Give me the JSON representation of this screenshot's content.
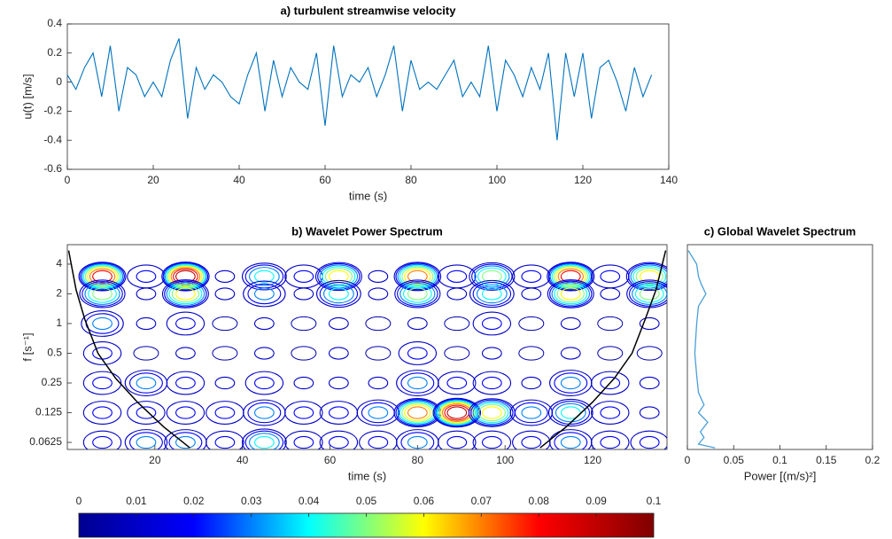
{
  "chart_data": [
    {
      "type": "line",
      "title": "a) turbulent streamwise velocity",
      "x_label": "time (s)",
      "y_label": "u(t) [m/s]",
      "x": [
        0,
        2,
        4,
        6,
        8,
        10,
        12,
        14,
        16,
        18,
        20,
        22,
        24,
        26,
        28,
        30,
        32,
        34,
        36,
        38,
        40,
        42,
        44,
        46,
        48,
        50,
        52,
        54,
        56,
        58,
        60,
        62,
        64,
        66,
        68,
        70,
        72,
        74,
        76,
        78,
        80,
        82,
        84,
        86,
        88,
        90,
        92,
        94,
        96,
        98,
        100,
        102,
        104,
        106,
        108,
        110,
        112,
        114,
        116,
        118,
        120,
        122,
        124,
        126,
        128,
        130,
        132,
        134,
        136
      ],
      "series": [
        {
          "color": "#0072bd",
          "values": [
            0.05,
            -0.05,
            0.1,
            0.2,
            -0.1,
            0.25,
            -0.2,
            0.1,
            0.05,
            -0.1,
            0.0,
            -0.1,
            0.15,
            0.3,
            -0.25,
            0.1,
            -0.05,
            0.05,
            0.0,
            -0.1,
            -0.15,
            0.05,
            0.2,
            -0.2,
            0.15,
            -0.1,
            0.1,
            0.0,
            -0.05,
            0.2,
            -0.3,
            0.25,
            -0.1,
            0.05,
            0.0,
            0.1,
            -0.1,
            0.05,
            0.25,
            -0.2,
            0.15,
            -0.05,
            0.0,
            -0.05,
            0.05,
            0.15,
            -0.1,
            0.0,
            -0.1,
            0.25,
            -0.2,
            0.15,
            0.05,
            -0.1,
            0.1,
            -0.05,
            0.2,
            -0.4,
            0.2,
            -0.1,
            0.2,
            -0.25,
            0.1,
            0.15,
            0.0,
            -0.2,
            0.1,
            -0.1,
            0.05
          ]
        }
      ],
      "xlim": [
        0,
        140
      ],
      "xticks": [
        0,
        20,
        40,
        60,
        80,
        100,
        120,
        140
      ],
      "ylim": [
        -0.6,
        0.4
      ],
      "yticks": [
        -0.6,
        -0.4,
        -0.2,
        0,
        0.2,
        0.4
      ]
    },
    {
      "type": "contour",
      "title": "b) Wavelet Power Spectrum",
      "x_label": "time (s)",
      "y_label": "f [s⁻¹]",
      "x": [
        8,
        18,
        27,
        36,
        45,
        54,
        62,
        71,
        80,
        89,
        97,
        106,
        115,
        124,
        133
      ],
      "y": [
        3,
        2,
        1,
        0.5,
        0.25,
        0.125,
        0.0625
      ],
      "z": [
        [
          0.08,
          0.02,
          0.09,
          0.01,
          0.04,
          0.02,
          0.06,
          0.01,
          0.07,
          0.02,
          0.05,
          0.02,
          0.08,
          0.02,
          0.06
        ],
        [
          0.05,
          0.01,
          0.06,
          0.01,
          0.03,
          0.01,
          0.04,
          0.01,
          0.05,
          0.01,
          0.04,
          0.01,
          0.06,
          0.01,
          0.05
        ],
        [
          0.03,
          0.01,
          0.02,
          0.005,
          0.01,
          0.005,
          0.01,
          0.005,
          0.01,
          0.005,
          0.02,
          0.005,
          0.01,
          0.005,
          0.01
        ],
        [
          0.02,
          0.005,
          0.01,
          0.005,
          0.01,
          0.005,
          0.01,
          0.005,
          0.02,
          0.005,
          0.01,
          0.005,
          0.01,
          0.005,
          0.005
        ],
        [
          0.02,
          0.03,
          0.02,
          0.01,
          0.02,
          0.01,
          0.01,
          0.01,
          0.03,
          0.02,
          0.02,
          0.01,
          0.03,
          0.02,
          0.01
        ],
        [
          0.02,
          0.02,
          0.02,
          0.02,
          0.03,
          0.02,
          0.02,
          0.03,
          0.07,
          0.09,
          0.06,
          0.03,
          0.04,
          0.02,
          0.01
        ],
        [
          0.02,
          0.03,
          0.03,
          0.02,
          0.04,
          0.02,
          0.02,
          0.02,
          0.03,
          0.02,
          0.02,
          0.02,
          0.03,
          0.02,
          0.02
        ]
      ],
      "cone_of_influence": {
        "color": "#000000",
        "x": [
          0.3,
          2,
          4,
          7,
          11,
          16,
          22,
          28,
          null,
          108,
          114,
          120,
          125,
          129,
          132,
          134.5,
          136.7
        ],
        "y": [
          5.5,
          2.2,
          1.1,
          0.5,
          0.28,
          0.16,
          0.09,
          0.055,
          null,
          0.055,
          0.09,
          0.16,
          0.28,
          0.5,
          1.1,
          2.2,
          5.5
        ]
      },
      "xlim": [
        0,
        137
      ],
      "xticks": [
        20,
        40,
        60,
        80,
        100,
        120
      ],
      "yscale": "log",
      "ylim": [
        0.053,
        6.3
      ],
      "yticks": [
        0.0625,
        0.125,
        0.25,
        0.5,
        1,
        2,
        4
      ],
      "colorbar": {
        "clim": [
          0,
          0.1
        ],
        "ticks": [
          0,
          0.01,
          0.02,
          0.03,
          0.04,
          0.05,
          0.06,
          0.07,
          0.08,
          0.09,
          0.1
        ],
        "colormap": [
          "#00008f",
          "#0000ff",
          "#00ffff",
          "#ffff00",
          "#ff0000",
          "#800000"
        ]
      }
    },
    {
      "type": "hline",
      "title": "c) Global Wavelet Spectrum",
      "x_label": "Power [(m/s)²]",
      "frequencies": [
        5.5,
        4,
        3,
        2.5,
        2,
        1.5,
        1,
        0.7,
        0.5,
        0.3,
        0.2,
        0.15,
        0.125,
        0.1,
        0.08,
        0.07,
        0.06,
        0.055
      ],
      "series": [
        {
          "color": "#4a9fd8",
          "values": [
            0.001,
            0.01,
            0.012,
            0.015,
            0.02,
            0.012,
            0.01,
            0.009,
            0.008,
            0.01,
            0.012,
            0.018,
            0.012,
            0.022,
            0.014,
            0.018,
            0.012,
            0.03
          ]
        }
      ],
      "xlim": [
        0,
        0.2
      ],
      "xticks": [
        0,
        0.05,
        0.1,
        0.15,
        0.2
      ],
      "yscale": "log",
      "ylim": [
        0.053,
        6.3
      ]
    }
  ]
}
